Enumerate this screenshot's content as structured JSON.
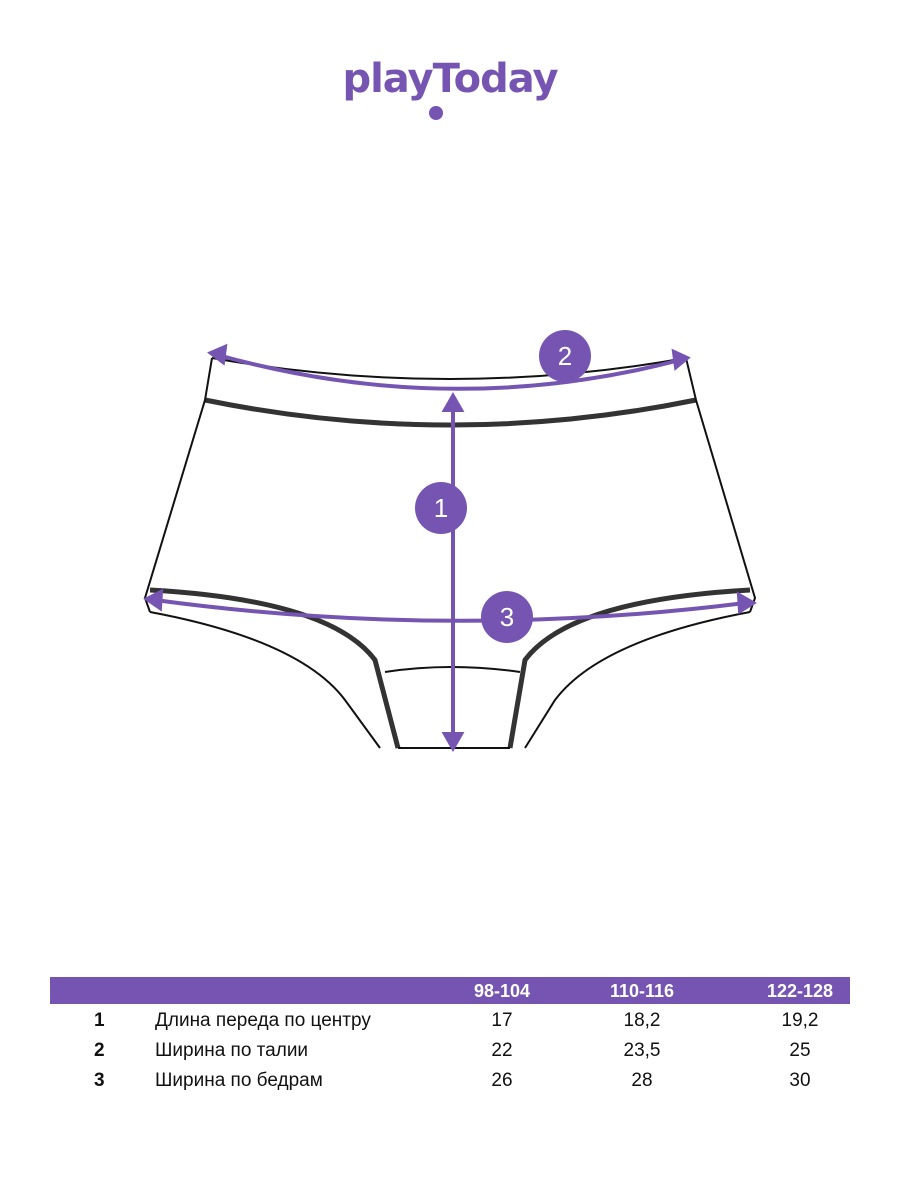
{
  "brand": {
    "logo_text": "playToday",
    "color": "#7655b2"
  },
  "diagram": {
    "markers": [
      "1",
      "2",
      "3"
    ]
  },
  "size_table": {
    "columns": [
      "98-104",
      "110-116",
      "122-128"
    ],
    "rows": [
      {
        "num": "1",
        "label": "Длина переда по центру",
        "values": [
          "17",
          "18,2",
          "19,2"
        ]
      },
      {
        "num": "2",
        "label": "Ширина по талии",
        "values": [
          "22",
          "23,5",
          "25"
        ]
      },
      {
        "num": "3",
        "label": "Ширина по бедрам",
        "values": [
          "26",
          "28",
          "30"
        ]
      }
    ]
  }
}
